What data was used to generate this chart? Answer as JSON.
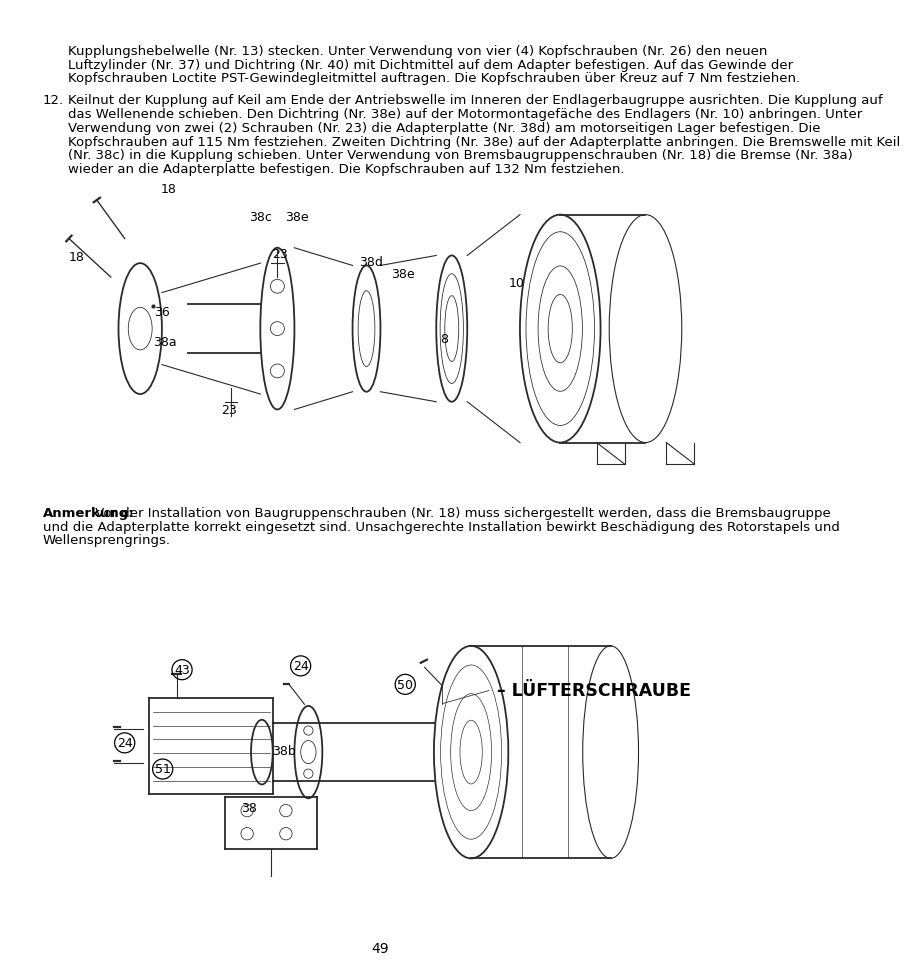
{
  "page_bg": "#ffffff",
  "text_color": "#000000",
  "page_number": "49",
  "top_text_lines": [
    "Kupplungshebelwelle (Nr. 13) stecken. Unter Verwendung von vier (4) Kopfschrauben (Nr. 26) den neuen",
    "Luftzylinder (Nr. 37) und Dichtring (Nr. 40) mit Dichtmittel auf dem Adapter befestigen. Auf das Gewinde der",
    "Kopfschrauben Loctite PST-Gewindegleitmittel auftragen. Die Kopfschrauben über Kreuz auf 7 Nm festziehen."
  ],
  "item12_lines": [
    "Keilnut der Kupplung auf Keil am Ende der Antriebswelle im Inneren der Endlagerbaugruppe ausrichten. Die Kupplung auf",
    "das Wellenende schieben. Den Dichtring (Nr. 38e) auf der Motormontagefäche des Endlagers (Nr. 10) anbringen. Unter",
    "Verwendung von zwei (2) Schrauben (Nr. 23) die Adapterplatte (Nr. 38d) am motorseitigen Lager befestigen. Die",
    "Kopfschrauben auf 115 Nm festziehen. Zweiten Dichtring (Nr. 38e) auf der Adapterplatte anbringen. Die Bremswelle mit Keil",
    "(Nr. 38c) in die Kupplung schieben. Unter Verwendung von Bremsbaugruppenschrauben (Nr. 18) die Bremse (Nr. 38a)",
    "wieder an die Adapterplatte befestigen. Die Kopfschrauben auf 132 Nm festziehen."
  ],
  "note_bold": "Anmerkung:",
  "note_line1": " Vor der Installation von Baugruppenschrauben (Nr. 18) muss sichergestellt werden, dass die Bremsbaugruppe",
  "note_line2": "und die Adapterplatte korrekt eingesetzt sind. Unsachgerechte Installation bewirkt Beschädigung des Rotorstapels und",
  "note_line3": "Wellensprengrings.",
  "luefter_label": "– LÜFTERSCHRAUBE",
  "font_size_body": 9.5,
  "font_size_label": 9.0,
  "font_size_page": 10.0
}
